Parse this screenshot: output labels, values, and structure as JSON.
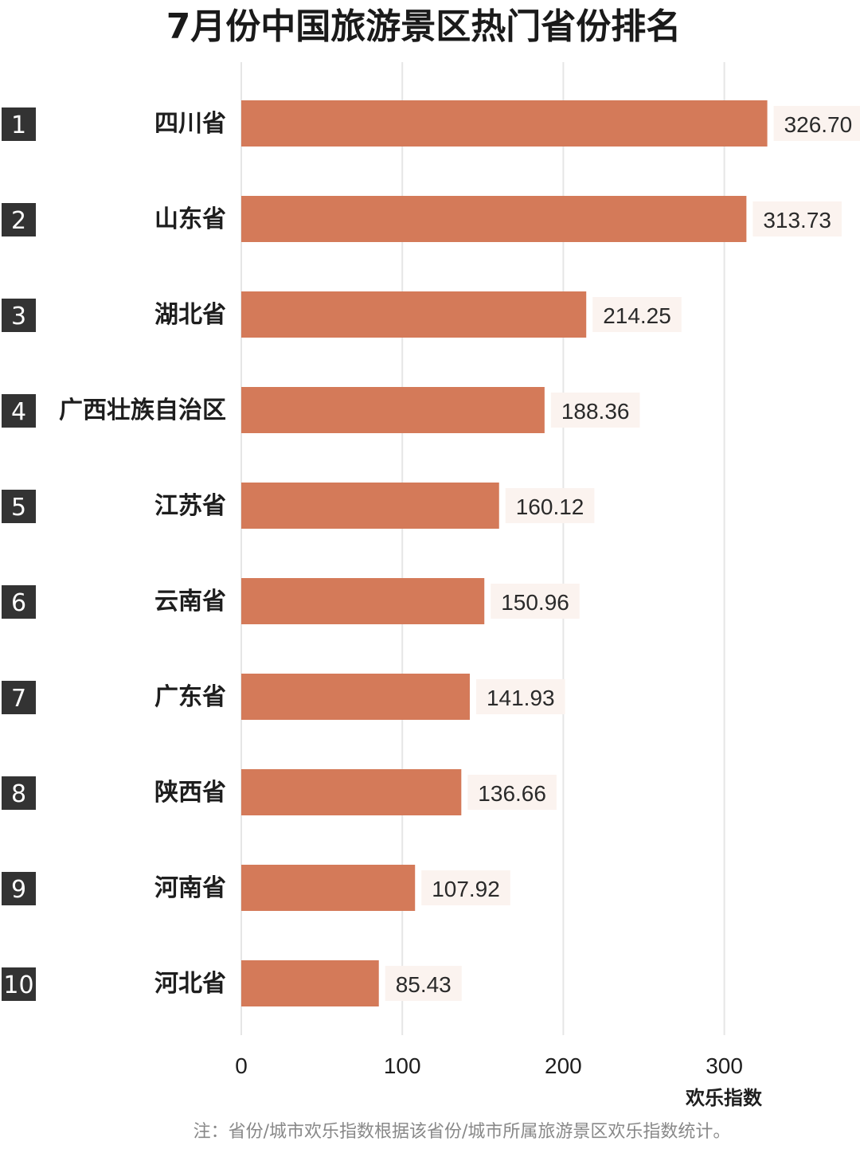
{
  "colors": {
    "bar": "#d47a59",
    "rank_box": "#333333",
    "grid": "#e6e6e6",
    "label_bg": "#fbf3ef"
  },
  "chart_data": {
    "type": "bar",
    "orientation": "horizontal",
    "title": "7月份中国旅游景区热门省份排名",
    "xlabel": "欢乐指数",
    "ylabel": "",
    "ranks": [
      "1",
      "2",
      "3",
      "4",
      "5",
      "6",
      "7",
      "8",
      "9",
      "10"
    ],
    "categories": [
      "四川省",
      "山东省",
      "湖北省",
      "广西壮族自治区",
      "江苏省",
      "云南省",
      "广东省",
      "陕西省",
      "河南省",
      "河北省"
    ],
    "values": [
      326.7,
      313.73,
      214.25,
      188.36,
      160.12,
      150.96,
      141.93,
      136.66,
      107.92,
      85.43
    ],
    "value_labels": [
      "326.70",
      "313.73",
      "214.25",
      "188.36",
      "160.12",
      "150.96",
      "141.93",
      "136.66",
      "107.92",
      "85.43"
    ],
    "xticks": [
      "0",
      "100",
      "200",
      "300"
    ],
    "xtick_values": [
      0,
      100,
      200,
      300
    ],
    "xlim": [
      0,
      380
    ],
    "grid": true,
    "legend": "none",
    "note": "注：省份/城市欢乐指数根据该省份/城市所属旅游景区欢乐指数统计。"
  }
}
